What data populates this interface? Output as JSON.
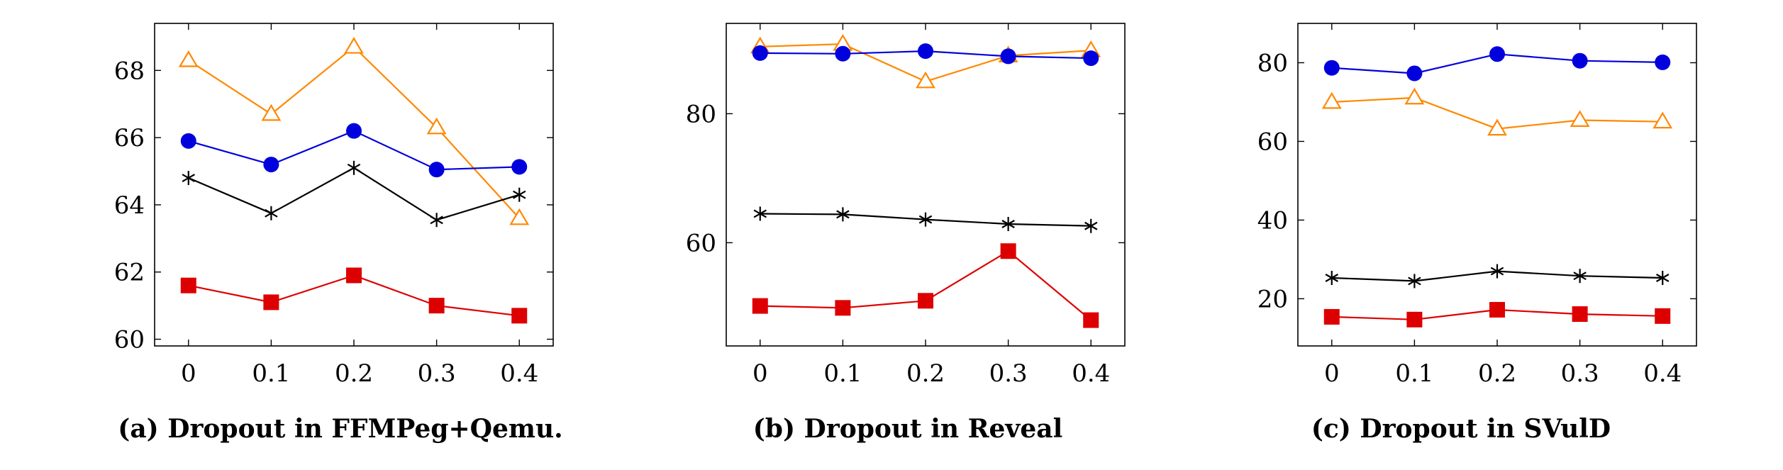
{
  "colors": {
    "series_a": "#0000dd",
    "series_b": "#ff8800",
    "series_c": "#000000",
    "series_d": "#dd0000"
  },
  "chart_data": [
    {
      "type": "line",
      "x": [
        0,
        0.1,
        0.2,
        0.3,
        0.4
      ],
      "xticks": [
        "0",
        "0.1",
        "0.2",
        "0.3",
        "0.4"
      ],
      "yticks": [
        60,
        62,
        64,
        66,
        68
      ],
      "ylim": [
        59.8,
        69.4
      ],
      "series": [
        {
          "marker": "triangle",
          "color": "#ff8800",
          "values": [
            68.3,
            66.7,
            68.7,
            66.3,
            63.6
          ]
        },
        {
          "marker": "circle",
          "color": "#0000dd",
          "values": [
            65.9,
            65.2,
            66.2,
            65.05,
            65.13
          ]
        },
        {
          "marker": "star",
          "color": "#000000",
          "values": [
            64.8,
            63.75,
            65.1,
            63.55,
            64.3
          ]
        },
        {
          "marker": "square",
          "color": "#dd0000",
          "values": [
            61.6,
            61.1,
            61.9,
            61.0,
            60.7
          ]
        }
      ],
      "caption": "(a) Dropout in FFMPeg+Qemu."
    },
    {
      "type": "line",
      "x": [
        0,
        0.1,
        0.2,
        0.3,
        0.4
      ],
      "xticks": [
        "0",
        "0.1",
        "0.2",
        "0.3",
        "0.4"
      ],
      "yticks": [
        60,
        80
      ],
      "ylim": [
        44,
        94
      ],
      "series": [
        {
          "marker": "triangle",
          "color": "#ff8800",
          "values": [
            90.4,
            90.8,
            85.0,
            89.0,
            89.8
          ]
        },
        {
          "marker": "circle",
          "color": "#0000dd",
          "values": [
            89.4,
            89.3,
            89.7,
            88.9,
            88.6
          ]
        },
        {
          "marker": "star",
          "color": "#000000",
          "values": [
            64.5,
            64.4,
            63.6,
            62.9,
            62.6
          ]
        },
        {
          "marker": "square",
          "color": "#dd0000",
          "values": [
            50.2,
            49.9,
            51.0,
            58.7,
            48.0
          ]
        }
      ],
      "caption": "(b) Dropout in Reveal"
    },
    {
      "type": "line",
      "x": [
        0,
        0.1,
        0.2,
        0.3,
        0.4
      ],
      "xticks": [
        "0",
        "0.1",
        "0.2",
        "0.3",
        "0.4"
      ],
      "yticks": [
        20,
        40,
        60,
        80
      ],
      "ylim": [
        8,
        90
      ],
      "series": [
        {
          "marker": "circle",
          "color": "#0000dd",
          "values": [
            78.7,
            77.3,
            82.2,
            80.5,
            80.1
          ]
        },
        {
          "marker": "triangle",
          "color": "#ff8800",
          "values": [
            70.0,
            71.1,
            63.2,
            65.4,
            65.0
          ]
        },
        {
          "marker": "star",
          "color": "#000000",
          "values": [
            25.3,
            24.5,
            27.0,
            25.8,
            25.3
          ]
        },
        {
          "marker": "square",
          "color": "#dd0000",
          "values": [
            15.4,
            14.7,
            17.2,
            16.1,
            15.6
          ]
        }
      ],
      "caption": "(c) Dropout in SVulD"
    }
  ]
}
